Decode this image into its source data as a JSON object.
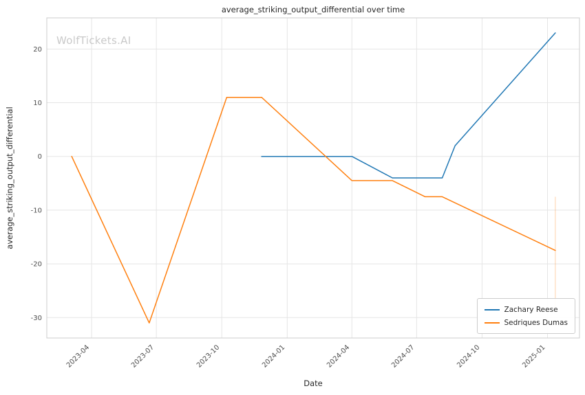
{
  "chart_data": {
    "type": "line",
    "title": "average_striking_output_differential over time",
    "xlabel": "Date",
    "ylabel": "average_striking_output_differential",
    "watermark": "WolfTickets.AI",
    "background_color": "#ffffff",
    "grid_color": "#e5e5e5",
    "spine_color": "#cccccc",
    "grid": true,
    "legend_position": "lower right",
    "xlim": [
      "2023-01-28",
      "2025-02-15"
    ],
    "ylim": [
      -33.8,
      25.8
    ],
    "y_ticks": [
      -30,
      -20,
      -10,
      0,
      10,
      20
    ],
    "x_ticks": [
      {
        "date": "2023-04-01",
        "label": "2023-04"
      },
      {
        "date": "2023-07-01",
        "label": "2023-07"
      },
      {
        "date": "2023-10-01",
        "label": "2023-10"
      },
      {
        "date": "2024-01-01",
        "label": "2024-01"
      },
      {
        "date": "2024-04-01",
        "label": "2024-04"
      },
      {
        "date": "2024-07-01",
        "label": "2024-07"
      },
      {
        "date": "2024-10-01",
        "label": "2024-10"
      },
      {
        "date": "2025-01-01",
        "label": "2025-01"
      }
    ],
    "series": [
      {
        "name": "Zachary Reese",
        "color": "#1f77b4",
        "points": [
          {
            "date": "2023-11-26",
            "value": 0
          },
          {
            "date": "2024-04-01",
            "value": 0
          },
          {
            "date": "2024-05-28",
            "value": -4
          },
          {
            "date": "2024-08-06",
            "value": -4
          },
          {
            "date": "2024-08-24",
            "value": 2
          },
          {
            "date": "2025-01-12",
            "value": 23
          }
        ]
      },
      {
        "name": "Sedriques Dumas",
        "color": "#ff7f0e",
        "points": [
          {
            "date": "2023-03-04",
            "value": 0
          },
          {
            "date": "2023-06-21",
            "value": -31
          },
          {
            "date": "2023-10-08",
            "value": 11
          },
          {
            "date": "2023-11-26",
            "value": 11
          },
          {
            "date": "2024-04-01",
            "value": -4.5
          },
          {
            "date": "2024-05-28",
            "value": -4.5
          },
          {
            "date": "2024-07-13",
            "value": -7.5
          },
          {
            "date": "2024-08-06",
            "value": -7.5
          },
          {
            "date": "2025-01-12",
            "value": -17.5
          }
        ]
      }
    ],
    "annotations": [
      {
        "type": "vline",
        "x": "2025-01-12",
        "y1": -7.5,
        "y2": -28,
        "color": "#ff7f0e",
        "opacity": 0.35
      }
    ]
  }
}
